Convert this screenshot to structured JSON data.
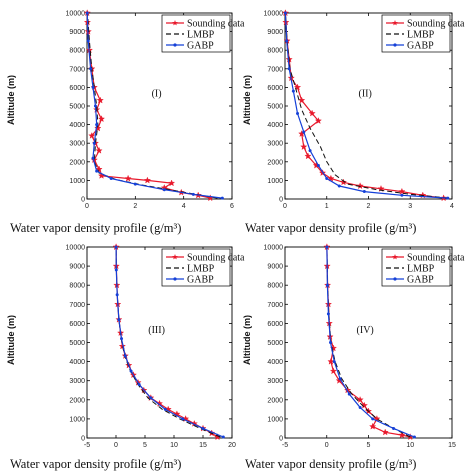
{
  "chart_data": [
    {
      "type": "line",
      "panel": "(I)",
      "xlabel": "Water vapor density profile (g/m³)",
      "ylabel": "Altitude (m)",
      "xlim": [
        0,
        6
      ],
      "ylim": [
        0,
        10000
      ],
      "xticks": [
        0,
        2,
        4,
        6
      ],
      "yticks": [
        0,
        1000,
        2000,
        3000,
        4000,
        5000,
        6000,
        7000,
        8000,
        9000,
        10000
      ],
      "legend": "top-right",
      "series": [
        {
          "name": "Sounding data",
          "color": "#e8192c",
          "style": "solid",
          "marker": "star",
          "x": [
            5.1,
            4.6,
            3.9,
            3.2,
            3.5,
            2.5,
            1.7,
            0.6,
            0.5,
            0.3,
            0.5,
            0.35,
            0.2,
            0.45,
            0.6,
            0.4,
            0.55,
            0.3,
            0.2,
            0.1,
            0.05,
            0.02,
            0.01
          ],
          "y": [
            50,
            200,
            350,
            600,
            850,
            1000,
            1100,
            1250,
            1600,
            2100,
            2600,
            3000,
            3400,
            3800,
            4300,
            4800,
            5300,
            6000,
            7000,
            8000,
            9000,
            9500,
            10000
          ]
        },
        {
          "name": "LMBP",
          "color": "#111111",
          "style": "dashed",
          "marker": "none",
          "x": [
            5.4,
            4.5,
            3.4,
            2.3,
            1.2,
            0.5,
            0.3,
            0.35,
            0.45,
            0.4,
            0.3,
            0.2,
            0.1,
            0.02
          ],
          "y": [
            50,
            250,
            500,
            750,
            1050,
            1400,
            2000,
            3000,
            4000,
            5000,
            6000,
            7000,
            8500,
            10000
          ]
        },
        {
          "name": "GABP",
          "color": "#1540d8",
          "style": "solid",
          "marker": "dot",
          "x": [
            5.6,
            4.4,
            3.2,
            2.0,
            1.0,
            0.4,
            0.25,
            0.3,
            0.4,
            0.35,
            0.25,
            0.15,
            0.05,
            0.01
          ],
          "y": [
            50,
            250,
            500,
            800,
            1100,
            1500,
            2200,
            3000,
            4000,
            5000,
            6000,
            7000,
            8500,
            10000
          ]
        }
      ]
    },
    {
      "type": "line",
      "panel": "(II)",
      "xlabel": "Water vapor density profile (g/m³)",
      "ylabel": "Altitude (m)",
      "xlim": [
        0,
        4
      ],
      "ylim": [
        0,
        10000
      ],
      "xticks": [
        0,
        1,
        2,
        3,
        4
      ],
      "yticks": [
        0,
        1000,
        2000,
        3000,
        4000,
        5000,
        6000,
        7000,
        8000,
        9000,
        10000
      ],
      "legend": "top-right",
      "series": [
        {
          "name": "Sounding data",
          "color": "#e8192c",
          "style": "solid",
          "marker": "star",
          "x": [
            3.8,
            3.3,
            2.8,
            2.3,
            1.8,
            1.4,
            1.1,
            0.9,
            0.75,
            0.55,
            0.45,
            0.4,
            0.8,
            0.65,
            0.4,
            0.3,
            0.15,
            0.1,
            0.05,
            0.02,
            0.01
          ],
          "y": [
            50,
            200,
            400,
            550,
            700,
            900,
            1100,
            1400,
            1800,
            2300,
            2800,
            3500,
            4200,
            4600,
            5300,
            6000,
            6500,
            7500,
            8500,
            9500,
            10000
          ]
        },
        {
          "name": "LMBP",
          "color": "#111111",
          "style": "dashed",
          "marker": "none",
          "x": [
            3.9,
            3.0,
            2.2,
            1.5,
            1.2,
            1.0,
            0.85,
            0.6,
            0.4,
            0.25,
            0.12,
            0.05,
            0.01
          ],
          "y": [
            50,
            250,
            500,
            800,
            1300,
            2000,
            2800,
            3800,
            4800,
            6000,
            7000,
            8500,
            10000
          ]
        },
        {
          "name": "GABP",
          "color": "#1540d8",
          "style": "solid",
          "marker": "dot",
          "x": [
            3.9,
            2.8,
            1.9,
            1.3,
            1.0,
            0.8,
            0.6,
            0.45,
            0.3,
            0.2,
            0.1,
            0.04,
            0.01
          ],
          "y": [
            50,
            200,
            400,
            700,
            1100,
            1800,
            2600,
            3600,
            4600,
            5800,
            7000,
            8500,
            10000
          ]
        }
      ]
    },
    {
      "type": "line",
      "panel": "(III)",
      "xlabel": "Water vapor density profile (g/m³)",
      "ylabel": "Altitude (m)",
      "xlim": [
        -5,
        20
      ],
      "ylim": [
        0,
        10000
      ],
      "xticks": [
        -5,
        0,
        5,
        10,
        15,
        20
      ],
      "yticks": [
        0,
        1000,
        2000,
        3000,
        4000,
        5000,
        6000,
        7000,
        8000,
        9000,
        10000
      ],
      "legend": "top-right",
      "series": [
        {
          "name": "Sounding data",
          "color": "#e8192c",
          "style": "solid",
          "marker": "star",
          "x": [
            17.5,
            16.5,
            15.0,
            13.5,
            12.0,
            10.5,
            9.0,
            7.5,
            6.0,
            4.8,
            3.8,
            3.0,
            2.2,
            1.6,
            1.1,
            0.8,
            0.5,
            0.3,
            0.15,
            0.05,
            0.02
          ],
          "y": [
            50,
            250,
            500,
            750,
            1000,
            1250,
            1500,
            1800,
            2100,
            2500,
            2900,
            3300,
            3800,
            4300,
            4800,
            5500,
            6200,
            7000,
            8000,
            9000,
            10000
          ]
        },
        {
          "name": "LMBP",
          "color": "#111111",
          "style": "dashed",
          "marker": "none",
          "x": [
            18.0,
            14.5,
            11.0,
            8.0,
            5.5,
            3.8,
            2.5,
            1.5,
            0.9,
            0.5,
            0.2,
            0.05,
            0.01
          ],
          "y": [
            50,
            500,
            1000,
            1500,
            2100,
            2800,
            3500,
            4300,
            5200,
            6200,
            7500,
            8800,
            10000
          ]
        },
        {
          "name": "GABP",
          "color": "#1540d8",
          "style": "solid",
          "marker": "dot",
          "x": [
            18.5,
            15.0,
            11.5,
            8.5,
            6.0,
            4.0,
            2.6,
            1.6,
            0.95,
            0.5,
            0.2,
            0.05,
            0.01
          ],
          "y": [
            50,
            500,
            1000,
            1500,
            2100,
            2800,
            3500,
            4300,
            5200,
            6200,
            7500,
            8800,
            10000
          ]
        }
      ]
    },
    {
      "type": "line",
      "panel": "(IV)",
      "xlabel": "Water vapor density profile (g/m³)",
      "ylabel": "Altitude (m)",
      "xlim": [
        -5,
        15
      ],
      "ylim": [
        0,
        10000
      ],
      "xticks": [
        -5,
        0,
        5,
        10,
        15
      ],
      "yticks": [
        0,
        1000,
        2000,
        3000,
        4000,
        5000,
        6000,
        7000,
        8000,
        9000,
        10000
      ],
      "legend": "top-right",
      "series": [
        {
          "name": "Sounding data",
          "color": "#e8192c",
          "style": "solid",
          "marker": "star",
          "x": [
            10.0,
            9.0,
            7.0,
            5.5,
            6.0,
            5.0,
            4.5,
            4.0,
            2.5,
            1.5,
            0.8,
            0.5,
            0.8,
            0.4,
            0.3,
            0.2,
            0.1,
            0.05,
            0.02
          ],
          "y": [
            50,
            150,
            300,
            600,
            1000,
            1400,
            1700,
            2000,
            2500,
            3000,
            3500,
            4000,
            4700,
            5300,
            6000,
            7000,
            8000,
            9000,
            10000
          ]
        },
        {
          "name": "LMBP",
          "color": "#111111",
          "style": "dashed",
          "marker": "none",
          "x": [
            10.0,
            8.0,
            6.0,
            4.5,
            3.0,
            1.8,
            1.0,
            0.5,
            0.25,
            0.1,
            0.02
          ],
          "y": [
            50,
            500,
            1000,
            1600,
            2300,
            3100,
            4000,
            5000,
            6500,
            8000,
            10000
          ]
        },
        {
          "name": "GABP",
          "color": "#1540d8",
          "style": "solid",
          "marker": "dot",
          "x": [
            10.5,
            8.0,
            5.5,
            4.0,
            2.7,
            1.6,
            0.9,
            0.45,
            0.2,
            0.08,
            0.02
          ],
          "y": [
            50,
            500,
            1000,
            1600,
            2300,
            3100,
            4000,
            5000,
            6500,
            8000,
            10000
          ]
        }
      ]
    }
  ]
}
